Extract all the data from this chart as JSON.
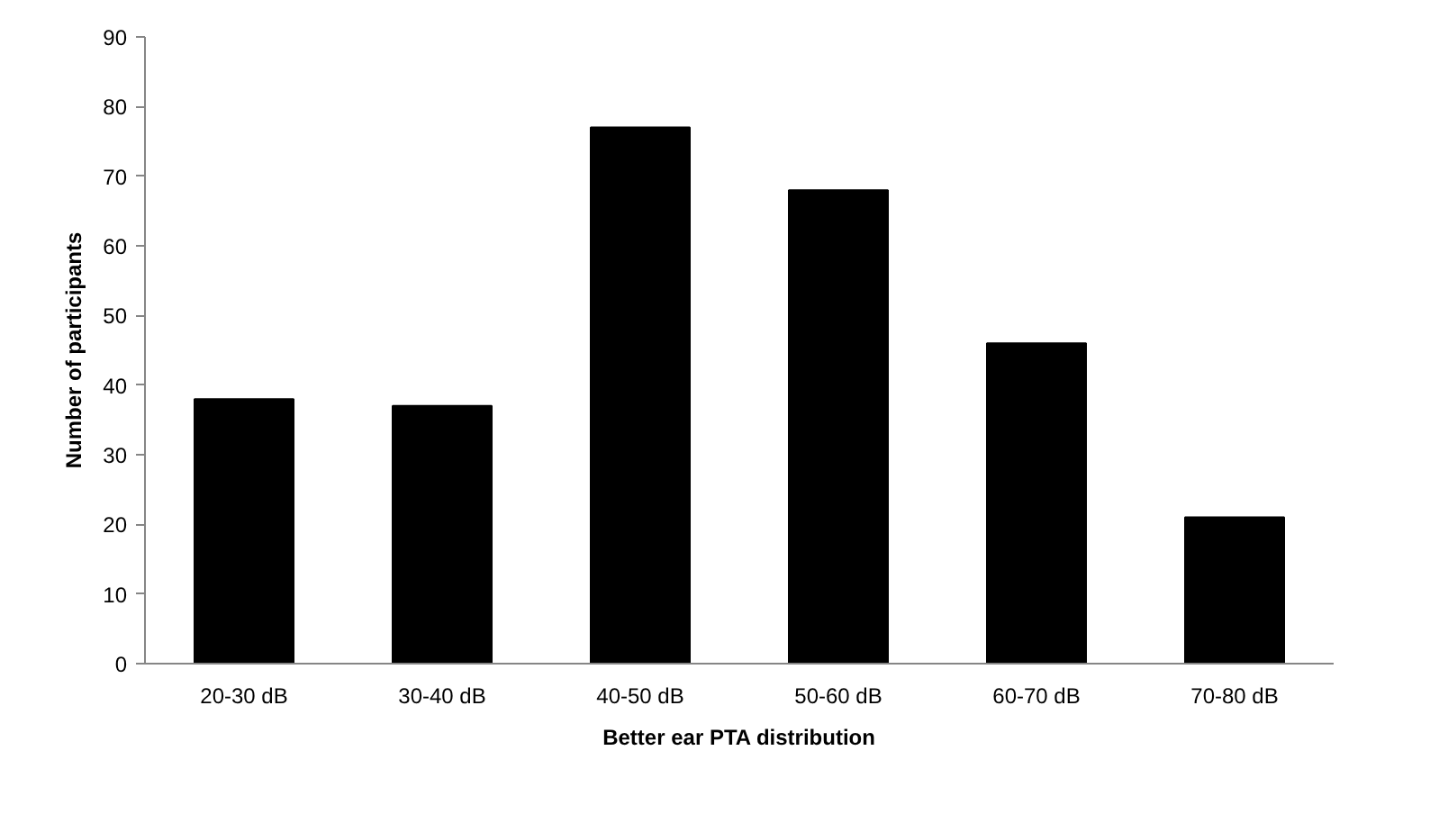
{
  "chart_data": {
    "type": "bar",
    "categories": [
      "20-30 dB",
      "30-40 dB",
      "40-50 dB",
      "50-60 dB",
      "60-70 dB",
      "70-80 dB"
    ],
    "values": [
      38,
      37,
      77,
      68,
      46,
      21
    ],
    "color": "#000000",
    "xlabel": "Better ear PTA distribution",
    "ylabel": "Number of participants",
    "ylim": [
      0,
      90
    ],
    "yticks": [
      0,
      10,
      20,
      30,
      40,
      50,
      60,
      70,
      80,
      90
    ],
    "grid": false
  }
}
